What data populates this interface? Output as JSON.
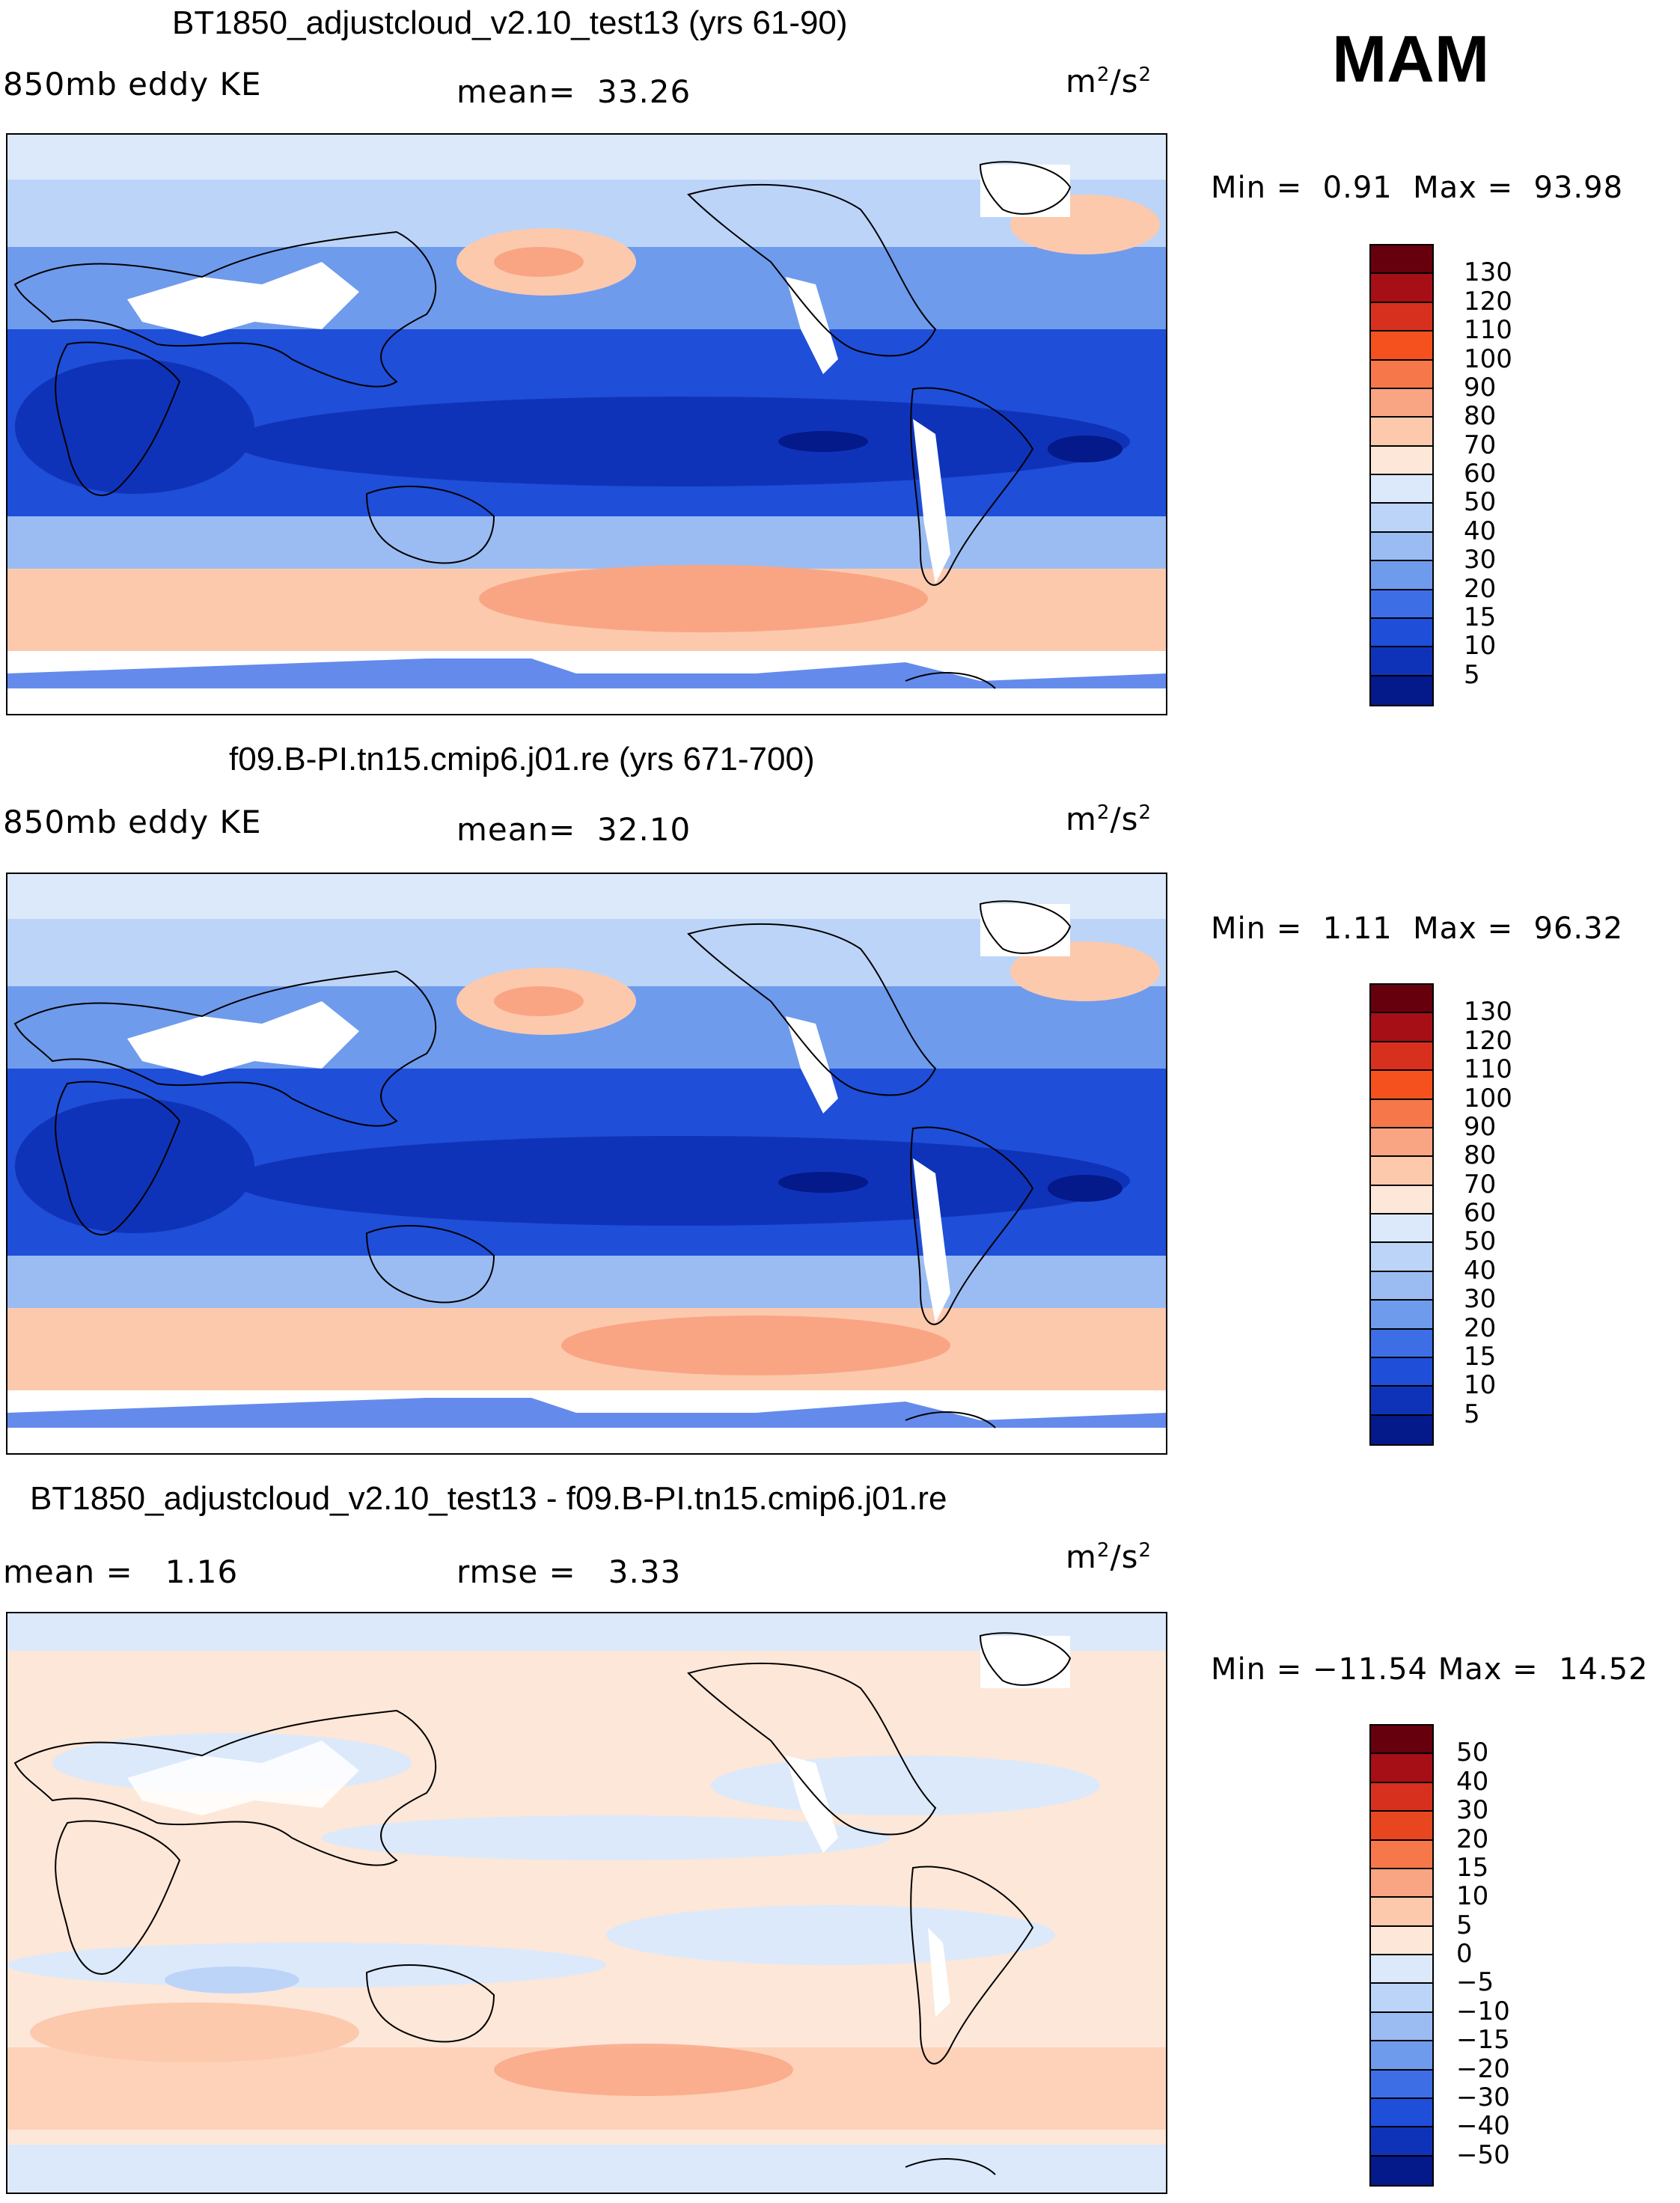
{
  "season": "MAM",
  "panels": [
    {
      "title": "BT1850_adjustcloud_v2.10_test13 (yrs 61-90)",
      "left_label": "850mb eddy KE",
      "center_label": "mean=  33.26",
      "units_base": "m",
      "units_sup1": "2",
      "units_mid": "/s",
      "units_sup2": "2",
      "min_label": "Min =",
      "min_value": "0.91",
      "max_label": "Max =",
      "max_value": "93.98"
    },
    {
      "title": "f09.B-PI.tn15.cmip6.j01.re (yrs 671-700)",
      "left_label": "850mb eddy KE",
      "center_label": "mean=  32.10",
      "units_base": "m",
      "units_sup1": "2",
      "units_mid": "/s",
      "units_sup2": "2",
      "min_label": "Min =",
      "min_value": "1.11",
      "max_label": "Max =",
      "max_value": "96.32"
    },
    {
      "title": "BT1850_adjustcloud_v2.10_test13 - f09.B-PI.tn15.cmip6.j01.re",
      "left_label": "mean =   1.16",
      "center_label": "rmse =   3.33",
      "units_base": "m",
      "units_sup1": "2",
      "units_mid": "/s",
      "units_sup2": "2",
      "min_label": "Min =",
      "min_value": "−11.54",
      "max_label": "Max =",
      "max_value": "14.52"
    }
  ],
  "colorbars": {
    "abs": {
      "colors": [
        "#67000d",
        "#a50f15",
        "#d7301f",
        "#f4511e",
        "#f5774a",
        "#f9a583",
        "#fcc9ad",
        "#fde7d8",
        "#dbe9fb",
        "#bcd4f8",
        "#9bbcf2",
        "#6f9bec",
        "#3d6ee6",
        "#1f4ed8",
        "#0f33b8",
        "#04198a"
      ],
      "ticks": [
        "130",
        "120",
        "110",
        "100",
        "90",
        "80",
        "70",
        "60",
        "50",
        "40",
        "30",
        "20",
        "15",
        "10",
        "5"
      ]
    },
    "diff": {
      "colors": [
        "#67000d",
        "#a50f15",
        "#d7301f",
        "#e8461f",
        "#f5774a",
        "#f9a583",
        "#fcc9ad",
        "#fde7d8",
        "#dbe9fb",
        "#bcd4f8",
        "#9bbcf2",
        "#6f9bec",
        "#3d6ee6",
        "#1f4ed8",
        "#0f33b8",
        "#04198a"
      ],
      "ticks": [
        "50",
        "40",
        "30",
        "20",
        "15",
        "10",
        "5",
        "0",
        "−5",
        "−10",
        "−15",
        "−20",
        "−30",
        "−40",
        "−50"
      ]
    }
  }
}
